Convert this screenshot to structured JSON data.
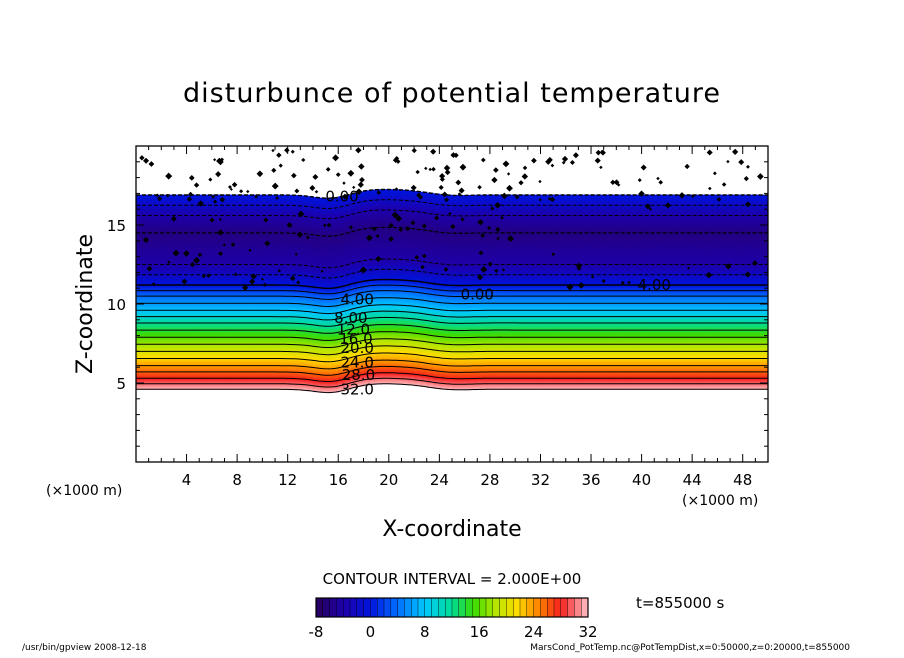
{
  "chart_data": {
    "type": "heatmap",
    "title": "disturbunce of potential temperature",
    "xlabel": "X-coordinate",
    "ylabel": "Z-coordinate",
    "x_unit": "(×1000 m)",
    "y_unit": "(×1000 m)",
    "xlim": [
      0,
      50
    ],
    "ylim": [
      0,
      20
    ],
    "x_ticks": [
      4,
      8,
      12,
      16,
      20,
      24,
      28,
      32,
      36,
      40,
      44,
      48
    ],
    "y_ticks": [
      5,
      10,
      15
    ],
    "zlim": [
      -8,
      32
    ],
    "contour_interval_text": "CONTOUR INTERVAL = 2.000E+00",
    "colorbar_ticks": [
      -8,
      0,
      8,
      16,
      24,
      32
    ],
    "time_text": "t=855000 s",
    "contour_labels": [
      {
        "text": "0.00",
        "x": 16.3,
        "z": 16.8
      },
      {
        "text": "0.00",
        "x": 27.0,
        "z": 10.6
      },
      {
        "text": "4.00",
        "x": 41.0,
        "z": 11.2
      },
      {
        "text": "4.00",
        "x": 17.5,
        "z": 10.3
      },
      {
        "text": "8.00",
        "x": 17.0,
        "z": 9.1
      },
      {
        "text": "12.0",
        "x": 17.2,
        "z": 8.4
      },
      {
        "text": "16.0",
        "x": 17.4,
        "z": 7.8
      },
      {
        "text": "20.0",
        "x": 17.5,
        "z": 7.2
      },
      {
        "text": "24.0",
        "x": 17.5,
        "z": 6.3
      },
      {
        "text": "28.0",
        "x": 17.6,
        "z": 5.5
      },
      {
        "text": "32.0",
        "x": 17.5,
        "z": 4.6
      }
    ],
    "vertical_profile": [
      {
        "z": 4.6,
        "value": 32
      },
      {
        "z": 5.3,
        "value": 28
      },
      {
        "z": 6.1,
        "value": 24
      },
      {
        "z": 7.0,
        "value": 20
      },
      {
        "z": 7.9,
        "value": 16
      },
      {
        "z": 8.8,
        "value": 12
      },
      {
        "z": 9.6,
        "value": 8
      },
      {
        "z": 10.5,
        "value": 4
      },
      {
        "z": 11.2,
        "value": 0
      },
      {
        "z": 12.5,
        "value": -4
      },
      {
        "z": 14.5,
        "value": -6
      },
      {
        "z": 15.6,
        "value": -4
      },
      {
        "z": 16.9,
        "value": 0
      }
    ],
    "grid": false
  },
  "footer": {
    "left": "/usr/bin/gpview   2008-12-18",
    "right": "MarsCond_PotTemp.nc@PotTempDist,x=0:50000,z=0:20000,t=855000"
  }
}
